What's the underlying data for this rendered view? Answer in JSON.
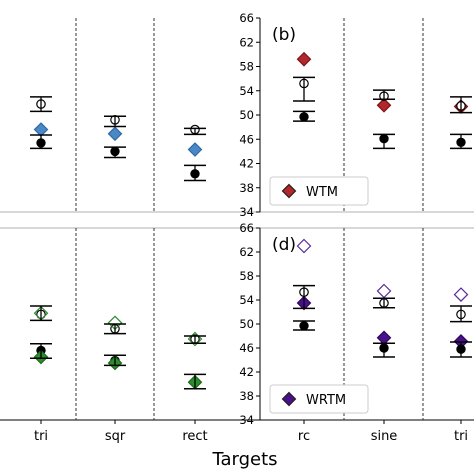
{
  "figure": {
    "xlabel": "Targets"
  },
  "colors": {
    "WTM": "#b3262a",
    "WRTM": "#4b0f8a",
    "blue_diamond": "#4a87c5",
    "green_diamond": "#2e8b2e",
    "open_marker_edge": "#000000",
    "violet_open": "#5a2a9a",
    "green_open": "#2e8b2e",
    "blue_open": "#4a87c5"
  },
  "chart_data": [
    {
      "type": "scatter",
      "panel": "top-left",
      "categories": [
        "tri",
        "sqr",
        "rect"
      ],
      "ylim": [
        34,
        66
      ],
      "series": [
        {
          "marker": "open-circle",
          "values": [
            51.8,
            49.2,
            47.6
          ]
        },
        {
          "marker": "filled-circle",
          "values": [
            45.4,
            44.0,
            40.3
          ]
        },
        {
          "marker": "blue-diamond",
          "values": [
            47.6,
            46.9,
            44.3
          ]
        },
        {
          "marker": "error-bar-upper",
          "values": [
            [
              53.0,
              50.6
            ],
            [
              49.8,
              48.1
            ],
            [
              47.8,
              46.8
            ]
          ]
        },
        {
          "marker": "error-bar-lower",
          "values": [
            [
              46.7,
              44.5
            ],
            [
              44.7,
              43.0
            ],
            [
              41.7,
              39.2
            ]
          ]
        }
      ]
    },
    {
      "type": "scatter",
      "panel": "top-right",
      "label": "(b)",
      "categories": [
        "rc",
        "sine",
        "tri"
      ],
      "ylim": [
        34,
        66
      ],
      "yticks": [
        34,
        38,
        42,
        46,
        50,
        54,
        58,
        62,
        66
      ],
      "legend": {
        "entries": [
          "WTM"
        ],
        "placement": "lower-left"
      },
      "series": [
        {
          "name": "WTM",
          "marker": "red-diamond",
          "values": [
            59.2,
            51.6,
            51.4
          ]
        },
        {
          "marker": "open-circle",
          "values": [
            55.2,
            53.1,
            51.5
          ]
        },
        {
          "marker": "filled-circle",
          "values": [
            49.7,
            46.1,
            45.5
          ]
        },
        {
          "marker": "error-bar-upper",
          "values": [
            [
              56.2,
              52.3
            ],
            [
              54.1,
              52.6
            ],
            [
              53.0,
              50.4
            ]
          ]
        },
        {
          "marker": "error-bar-lower",
          "values": [
            [
              50.6,
              49.0
            ],
            [
              46.8,
              44.5
            ],
            [
              46.8,
              44.5
            ]
          ]
        }
      ]
    },
    {
      "type": "scatter",
      "panel": "bottom-left",
      "categories": [
        "tri",
        "sqr",
        "rect"
      ],
      "ylim": [
        34,
        66
      ],
      "series": [
        {
          "marker": "open-circle",
          "values": [
            51.6,
            49.2,
            47.5
          ]
        },
        {
          "marker": "open-green-diamond",
          "values": [
            51.8,
            50.2,
            47.5
          ]
        },
        {
          "marker": "filled-circle",
          "values": [
            45.6,
            43.9,
            40.3
          ]
        },
        {
          "marker": "green-diamond",
          "values": [
            44.5,
            43.5,
            40.3
          ]
        },
        {
          "marker": "error-bar-upper",
          "values": [
            [
              53.0,
              50.6
            ],
            [
              50.0,
              48.4
            ],
            [
              48.0,
              46.8
            ]
          ]
        },
        {
          "marker": "error-bar-lower",
          "values": [
            [
              46.7,
              44.3
            ],
            [
              44.8,
              43.1
            ],
            [
              41.6,
              39.2
            ]
          ]
        }
      ]
    },
    {
      "type": "scatter",
      "panel": "bottom-right",
      "label": "(d)",
      "categories": [
        "rc",
        "sine",
        "tri"
      ],
      "ylim": [
        34,
        66
      ],
      "yticks": [
        34,
        38,
        42,
        46,
        50,
        54,
        58,
        62,
        66
      ],
      "legend": {
        "entries": [
          "WRTM"
        ],
        "placement": "lower-left"
      },
      "series": [
        {
          "name": "WRTM",
          "marker": "purple-diamond",
          "values": [
            53.5,
            47.7,
            47.1
          ]
        },
        {
          "marker": "open-violet-diamond",
          "values": [
            63.0,
            55.5,
            54.9
          ]
        },
        {
          "marker": "open-circle",
          "values": [
            55.3,
            53.5,
            51.6
          ]
        },
        {
          "marker": "filled-circle",
          "values": [
            49.7,
            46.0,
            45.8
          ]
        },
        {
          "marker": "error-bar-upper",
          "values": [
            [
              56.4,
              52.6
            ],
            [
              54.3,
              52.7
            ],
            [
              53.0,
              50.4
            ]
          ]
        },
        {
          "marker": "error-bar-lower",
          "values": [
            [
              50.5,
              49.0
            ],
            [
              46.8,
              44.5
            ],
            [
              47.0,
              44.5
            ]
          ]
        }
      ]
    }
  ]
}
